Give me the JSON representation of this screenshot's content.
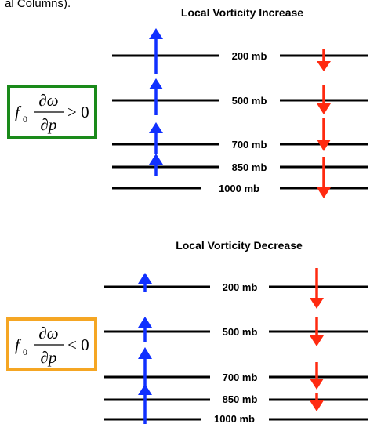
{
  "header_fragment": "al Columns).",
  "panels": [
    {
      "title": "Local Vorticity Increase",
      "formula": {
        "coef": "f",
        "coef_sub": "0",
        "num": "∂ω",
        "den": "∂p",
        "relation": "> 0"
      },
      "box_color": "#1a8a1a",
      "levels": [
        "200 mb",
        "500 mb",
        "700 mb",
        "850 mb",
        "1000 mb"
      ]
    },
    {
      "title": "Local Vorticity Decrease",
      "formula": {
        "coef": "f",
        "coef_sub": "0",
        "num": "∂ω",
        "den": "∂p",
        "relation": "< 0"
      },
      "box_color": "#f5a623",
      "levels": [
        "200 mb",
        "500 mb",
        "700 mb",
        "850 mb",
        "1000 mb"
      ]
    }
  ],
  "colors": {
    "up_arrow": "#1030ff",
    "down_arrow": "#ff2a10",
    "line": "#000000"
  }
}
